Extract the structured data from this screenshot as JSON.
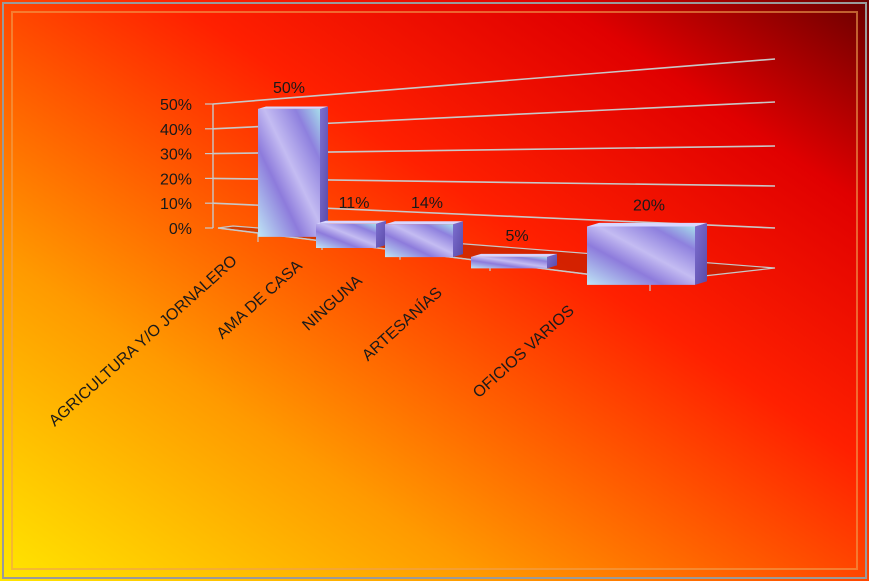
{
  "chart_data": {
    "type": "bar",
    "categories": [
      "AGRICULTURA Y/O JORNALERO",
      "AMA DE CASA",
      "NINGUNA",
      "ARTESANÍAS",
      "OFICIOS VARIOS"
    ],
    "values": [
      50,
      11,
      14,
      5,
      20
    ],
    "data_labels": [
      "50%",
      "11%",
      "14%",
      "5%",
      "20%"
    ],
    "y_ticks": [
      "0%",
      "10%",
      "20%",
      "30%",
      "40%",
      "50%"
    ],
    "ylim": [
      0,
      50
    ],
    "grid": true,
    "legend": "none",
    "colors": {
      "background_gradient": [
        "#ffe200",
        "#ff7a00",
        "#ff1a00",
        "#7a0000"
      ],
      "bar_face": [
        "#c9ccff",
        "#8e7fe0",
        "#a9e3f0"
      ],
      "bar_side": "#6b5bbf",
      "bar_top": "#d8d6ff",
      "floor": "#b02200",
      "gridline": "#c8c8c8",
      "text": "#1a1a1a"
    }
  }
}
